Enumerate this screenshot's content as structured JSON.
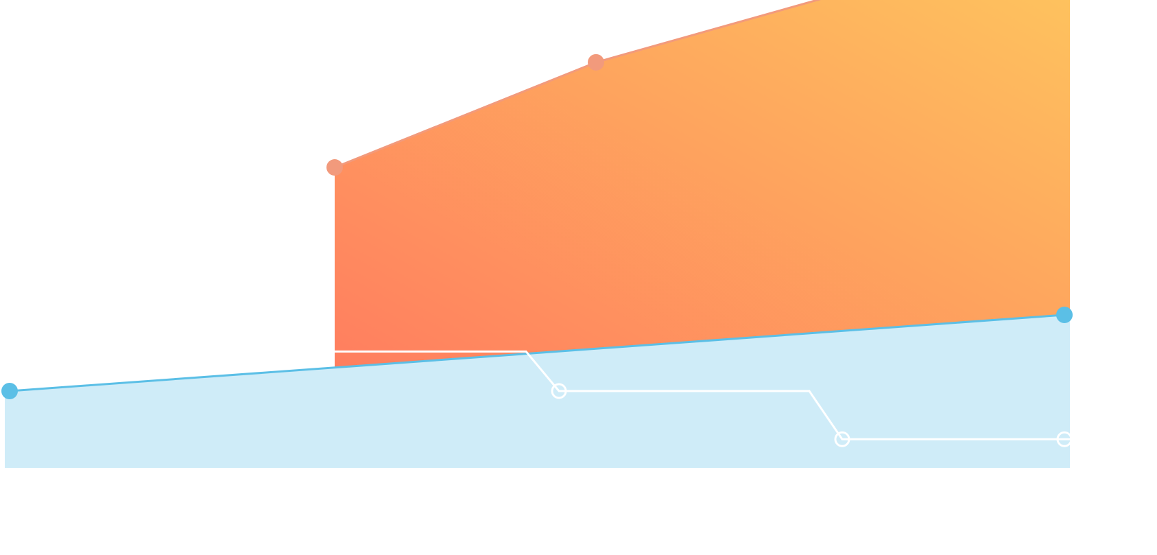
{
  "chart_data": {
    "type": "area",
    "x": [
      0,
      1,
      2,
      3,
      4
    ],
    "series": [
      {
        "key": "blue",
        "values": [
          0.0,
          null,
          null,
          null,
          3.95
        ],
        "line_color": "#5BBFE6",
        "fill_color": "#CFECF8",
        "marker": "filled"
      },
      {
        "key": "orange",
        "values": [
          null,
          11.6,
          17.05,
          20.95,
          22.2
        ],
        "line_color": "#F29A7C",
        "fill_gradient": [
          "#FF7E5F",
          "#FEC55E"
        ],
        "marker": "filled"
      },
      {
        "key": "white-step",
        "values": [
          null,
          2.05,
          0.0,
          -2.5,
          -2.5
        ],
        "line_color": "#FFFFFF",
        "marker": "hollow",
        "step": true
      }
    ],
    "ylim": [
      -4.0,
      24.0
    ],
    "xlim": [
      0,
      4
    ],
    "grid": false,
    "legend": "none",
    "title": "",
    "xlabel": "",
    "ylabel": ""
  }
}
